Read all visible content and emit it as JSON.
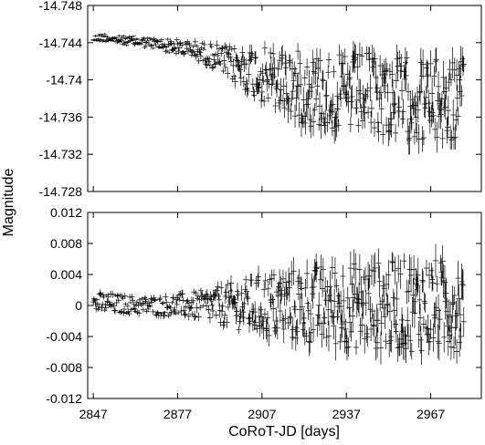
{
  "chart_data": [
    {
      "type": "scatter",
      "title": "",
      "xlabel": "",
      "ylabel": "",
      "xlim": [
        2845,
        2985
      ],
      "ylim": [
        -14.728,
        -14.748
      ],
      "y_inverted": true,
      "yticks": [
        -14.748,
        -14.744,
        -14.74,
        -14.736,
        -14.732,
        -14.728
      ],
      "ytick_labels": [
        "-14.748",
        "-14.744",
        "-14.74",
        "-14.736",
        "-14.732",
        "-14.728"
      ],
      "grid": false,
      "style": "points with vertical error bars",
      "series": [
        {
          "x": [
            2847,
            2851,
            2855,
            2859,
            2863,
            2867,
            2871,
            2875,
            2879,
            2883,
            2887,
            2891,
            2895,
            2899,
            2903,
            2907,
            2911,
            2915,
            2919,
            2923,
            2927,
            2931,
            2935,
            2939,
            2943,
            2947,
            2951,
            2955,
            2959,
            2963,
            2967,
            2971,
            2975,
            2979
          ],
          "y": [
            -14.7444,
            -14.7446,
            -14.7443,
            -14.7442,
            -14.7441,
            -14.744,
            -14.7438,
            -14.7436,
            -14.7434,
            -14.7432,
            -14.7428,
            -14.7424,
            -14.7418,
            -14.7414,
            -14.741,
            -14.7405,
            -14.74,
            -14.7398,
            -14.7394,
            -14.739,
            -14.7388,
            -14.7386,
            -14.7384,
            -14.7385,
            -14.7386,
            -14.7385,
            -14.7383,
            -14.7381,
            -14.738,
            -14.7378,
            -14.7377,
            -14.7376,
            -14.7375,
            -14.7378
          ],
          "amplitude": [
            0.0004,
            0.0005,
            0.0005,
            0.0005,
            0.0006,
            0.0006,
            0.0007,
            0.0008,
            0.0009,
            0.001,
            0.0012,
            0.0014,
            0.0018,
            0.0022,
            0.0026,
            0.003,
            0.0033,
            0.0036,
            0.0038,
            0.004,
            0.0042,
            0.0042,
            0.0043,
            0.0043,
            0.0044,
            0.0044,
            0.0044,
            0.0045,
            0.0045,
            0.0045,
            0.0046,
            0.0046,
            0.0046,
            0.0045
          ]
        }
      ]
    },
    {
      "type": "scatter",
      "title": "",
      "xlabel": "CoRoT-JD [days]",
      "ylabel": "",
      "xlim": [
        2845,
        2985
      ],
      "ylim": [
        -0.012,
        0.012
      ],
      "yticks": [
        0.012,
        0.008,
        0.004,
        0,
        -0.004,
        -0.008,
        -0.012
      ],
      "ytick_labels": [
        "0.012",
        "0.008",
        "0.004",
        "0",
        "-0.004",
        "-0.008",
        "-0.012"
      ],
      "xticks": [
        2847,
        2877,
        2907,
        2937,
        2967
      ],
      "xtick_labels": [
        "2847",
        "2877",
        "2907",
        "2937",
        "2967"
      ],
      "grid": false,
      "style": "points with vertical error bars",
      "series": [
        {
          "x": [
            2847,
            2851,
            2855,
            2859,
            2863,
            2867,
            2871,
            2875,
            2879,
            2883,
            2887,
            2891,
            2895,
            2899,
            2903,
            2907,
            2911,
            2915,
            2919,
            2923,
            2927,
            2931,
            2935,
            2939,
            2943,
            2947,
            2951,
            2955,
            2959,
            2963,
            2967,
            2971,
            2975,
            2979
          ],
          "y": [
            0.0002,
            0.0003,
            0.0002,
            0.0001,
            0.0,
            0.0,
            -0.0001,
            0.0,
            0.0,
            0.0,
            0.0,
            0.0,
            0.0,
            0.0,
            0.0,
            0.0,
            0.0,
            0.0,
            0.0,
            0.0,
            0.0,
            0.0,
            0.0,
            0.0,
            0.0,
            0.0,
            0.0,
            0.0,
            0.0,
            0.0,
            0.0,
            0.0,
            0.0,
            0.0
          ],
          "amplitude": [
            0.0014,
            0.0014,
            0.0013,
            0.0012,
            0.0012,
            0.0012,
            0.0013,
            0.0014,
            0.0016,
            0.0018,
            0.002,
            0.0024,
            0.0028,
            0.0032,
            0.0036,
            0.004,
            0.0044,
            0.0046,
            0.0048,
            0.005,
            0.0052,
            0.0054,
            0.0055,
            0.0056,
            0.0056,
            0.0057,
            0.0058,
            0.0058,
            0.0059,
            0.006,
            0.006,
            0.006,
            0.006,
            0.0058
          ]
        }
      ]
    }
  ],
  "shared_ylabel": "Magnitude"
}
